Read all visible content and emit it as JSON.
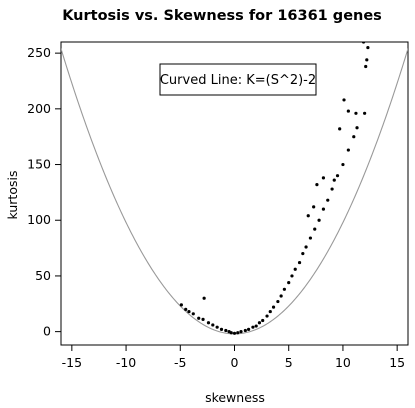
{
  "chart_data": {
    "type": "scatter",
    "title": "Kurtosis vs. Skewness for 16361 genes",
    "xlabel": "skewness",
    "ylabel": "kurtosis",
    "xlim": [
      -16,
      16
    ],
    "ylim": [
      -12,
      260
    ],
    "xticks": [
      -15,
      -10,
      -5,
      0,
      5,
      10,
      15
    ],
    "yticks": [
      0,
      50,
      100,
      150,
      200,
      250
    ],
    "legend": {
      "text": "Curved Line: K=(S^2)-2",
      "placement": "top-center"
    },
    "curve": {
      "formula": "K=(S^2)-2",
      "color": "#999999"
    },
    "point_color": "#000000",
    "series": [
      {
        "values": [
          [
            -4.9,
            24
          ],
          [
            -4.5,
            20
          ],
          [
            -4.2,
            18
          ],
          [
            -3.8,
            16
          ],
          [
            -3.3,
            12
          ],
          [
            -2.9,
            11
          ],
          [
            -2.8,
            30
          ],
          [
            -2.4,
            8
          ],
          [
            -2.0,
            6
          ],
          [
            -1.6,
            4
          ],
          [
            -1.2,
            2
          ],
          [
            -0.8,
            1
          ],
          [
            -0.5,
            0
          ],
          [
            -0.3,
            -1
          ],
          [
            0.0,
            -1.5
          ],
          [
            0.3,
            -1
          ],
          [
            0.6,
            0
          ],
          [
            1.0,
            1
          ],
          [
            1.3,
            2
          ],
          [
            1.7,
            4
          ],
          [
            2.0,
            5
          ],
          [
            2.3,
            8
          ],
          [
            2.6,
            10
          ],
          [
            3.0,
            14
          ],
          [
            3.3,
            18
          ],
          [
            3.6,
            22
          ],
          [
            4.0,
            27
          ],
          [
            4.3,
            32
          ],
          [
            4.6,
            38
          ],
          [
            5.0,
            44
          ],
          [
            5.3,
            50
          ],
          [
            5.6,
            56
          ],
          [
            6.0,
            62
          ],
          [
            6.3,
            70
          ],
          [
            6.6,
            76
          ],
          [
            7.0,
            84
          ],
          [
            7.4,
            92
          ],
          [
            7.8,
            100
          ],
          [
            8.2,
            110
          ],
          [
            8.6,
            118
          ],
          [
            9.0,
            128
          ],
          [
            9.5,
            140
          ],
          [
            10.0,
            150
          ],
          [
            10.5,
            163
          ],
          [
            11.0,
            175
          ],
          [
            11.3,
            183
          ],
          [
            9.7,
            182
          ],
          [
            10.1,
            208
          ],
          [
            10.5,
            198
          ],
          [
            11.2,
            196
          ],
          [
            12.0,
            196
          ],
          [
            12.1,
            238
          ],
          [
            12.2,
            244
          ],
          [
            12.3,
            255
          ],
          [
            11.9,
            260
          ],
          [
            8.2,
            138
          ],
          [
            7.6,
            132
          ],
          [
            9.2,
            136
          ],
          [
            6.8,
            104
          ],
          [
            7.3,
            112
          ]
        ]
      }
    ]
  }
}
